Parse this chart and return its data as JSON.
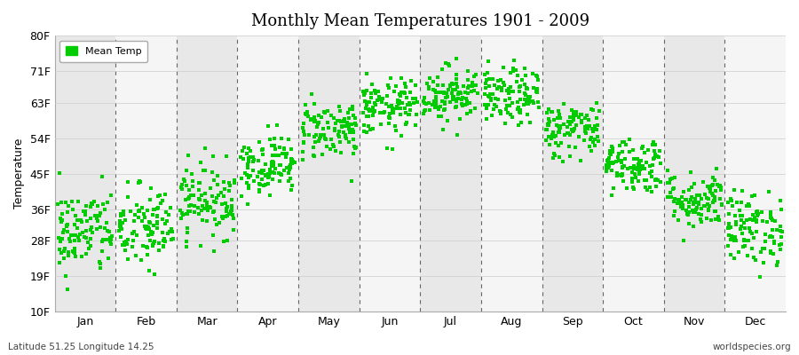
{
  "title": "Monthly Mean Temperatures 1901 - 2009",
  "ylabel": "Temperature",
  "xlabel_bottom_left": "Latitude 51.25 Longitude 14.25",
  "xlabel_bottom_right": "worldspecies.org",
  "legend_label": "Mean Temp",
  "dot_color": "#00cc00",
  "dot_size": 12,
  "background_color": "#ffffff",
  "band_colors": [
    "#e8e8e8",
    "#f5f5f5"
  ],
  "ytick_labels": [
    "10F",
    "19F",
    "28F",
    "36F",
    "45F",
    "54F",
    "63F",
    "71F",
    "80F"
  ],
  "ytick_values": [
    10,
    19,
    28,
    36,
    45,
    54,
    63,
    71,
    80
  ],
  "ylim": [
    10,
    80
  ],
  "months": [
    "Jan",
    "Feb",
    "Mar",
    "Apr",
    "May",
    "Jun",
    "Jul",
    "Aug",
    "Sep",
    "Oct",
    "Nov",
    "Dec"
  ],
  "year_start": 1901,
  "year_end": 2009,
  "monthly_mean_fahrenheit": [
    30.2,
    31.1,
    38.3,
    47.3,
    56.3,
    61.7,
    65.3,
    64.4,
    56.3,
    47.3,
    38.3,
    31.1
  ],
  "monthly_std_fahrenheit": [
    5.5,
    5.5,
    4.7,
    3.8,
    3.8,
    3.6,
    3.6,
    3.6,
    3.6,
    3.6,
    3.6,
    4.7
  ]
}
